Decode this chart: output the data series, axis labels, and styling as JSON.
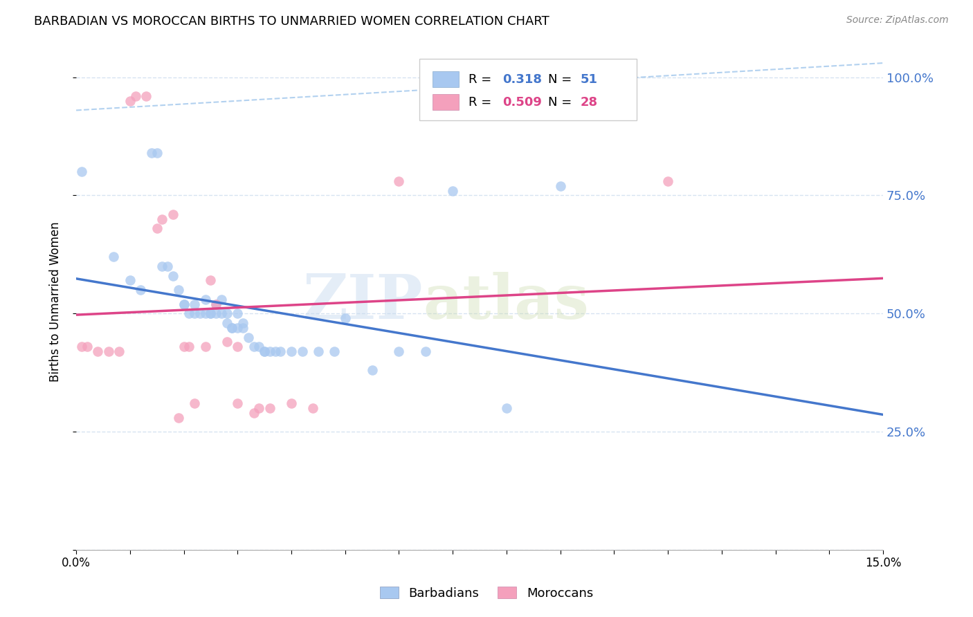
{
  "title": "BARBADIAN VS MOROCCAN BIRTHS TO UNMARRIED WOMEN CORRELATION CHART",
  "source": "Source: ZipAtlas.com",
  "ylabel": "Births to Unmarried Women",
  "xlim": [
    0.0,
    0.15
  ],
  "ylim": [
    0.0,
    1.05
  ],
  "ytick_values": [
    0.0,
    0.25,
    0.5,
    0.75,
    1.0
  ],
  "barbadian_color": "#a8c8f0",
  "moroccan_color": "#f4a0bc",
  "barbadian_R": 0.318,
  "barbadian_N": 51,
  "moroccan_R": 0.509,
  "moroccan_N": 28,
  "blue_line_color": "#4477cc",
  "pink_line_color": "#dd4488",
  "diagonal_color": "#aaccee",
  "watermark_zip": "ZIP",
  "watermark_atlas": "atlas",
  "background_color": "#ffffff",
  "legend_text_color": "#4477cc",
  "moroccan_legend_color": "#dd4488",
  "barbadian_x": [
    0.001,
    0.007,
    0.01,
    0.012,
    0.014,
    0.015,
    0.016,
    0.017,
    0.018,
    0.019,
    0.02,
    0.02,
    0.021,
    0.022,
    0.022,
    0.023,
    0.024,
    0.024,
    0.025,
    0.025,
    0.026,
    0.026,
    0.027,
    0.027,
    0.028,
    0.028,
    0.029,
    0.029,
    0.03,
    0.03,
    0.031,
    0.031,
    0.032,
    0.033,
    0.034,
    0.035,
    0.035,
    0.036,
    0.037,
    0.038,
    0.04,
    0.042,
    0.045,
    0.048,
    0.05,
    0.055,
    0.06,
    0.065,
    0.07,
    0.08,
    0.09
  ],
  "barbadian_y": [
    0.8,
    0.62,
    0.57,
    0.55,
    0.84,
    0.84,
    0.6,
    0.6,
    0.58,
    0.55,
    0.52,
    0.52,
    0.5,
    0.5,
    0.52,
    0.5,
    0.5,
    0.53,
    0.5,
    0.5,
    0.5,
    0.52,
    0.5,
    0.53,
    0.5,
    0.48,
    0.47,
    0.47,
    0.47,
    0.5,
    0.47,
    0.48,
    0.45,
    0.43,
    0.43,
    0.42,
    0.42,
    0.42,
    0.42,
    0.42,
    0.42,
    0.42,
    0.42,
    0.42,
    0.49,
    0.38,
    0.42,
    0.42,
    0.76,
    0.3,
    0.77
  ],
  "moroccan_x": [
    0.001,
    0.002,
    0.004,
    0.006,
    0.008,
    0.01,
    0.011,
    0.013,
    0.015,
    0.016,
    0.018,
    0.019,
    0.02,
    0.021,
    0.022,
    0.024,
    0.025,
    0.026,
    0.028,
    0.03,
    0.03,
    0.033,
    0.034,
    0.036,
    0.04,
    0.044,
    0.06,
    0.11
  ],
  "moroccan_y": [
    0.43,
    0.43,
    0.42,
    0.42,
    0.42,
    0.95,
    0.96,
    0.96,
    0.68,
    0.7,
    0.71,
    0.28,
    0.43,
    0.43,
    0.31,
    0.43,
    0.57,
    0.52,
    0.44,
    0.31,
    0.43,
    0.29,
    0.3,
    0.3,
    0.31,
    0.3,
    0.78,
    0.78
  ]
}
